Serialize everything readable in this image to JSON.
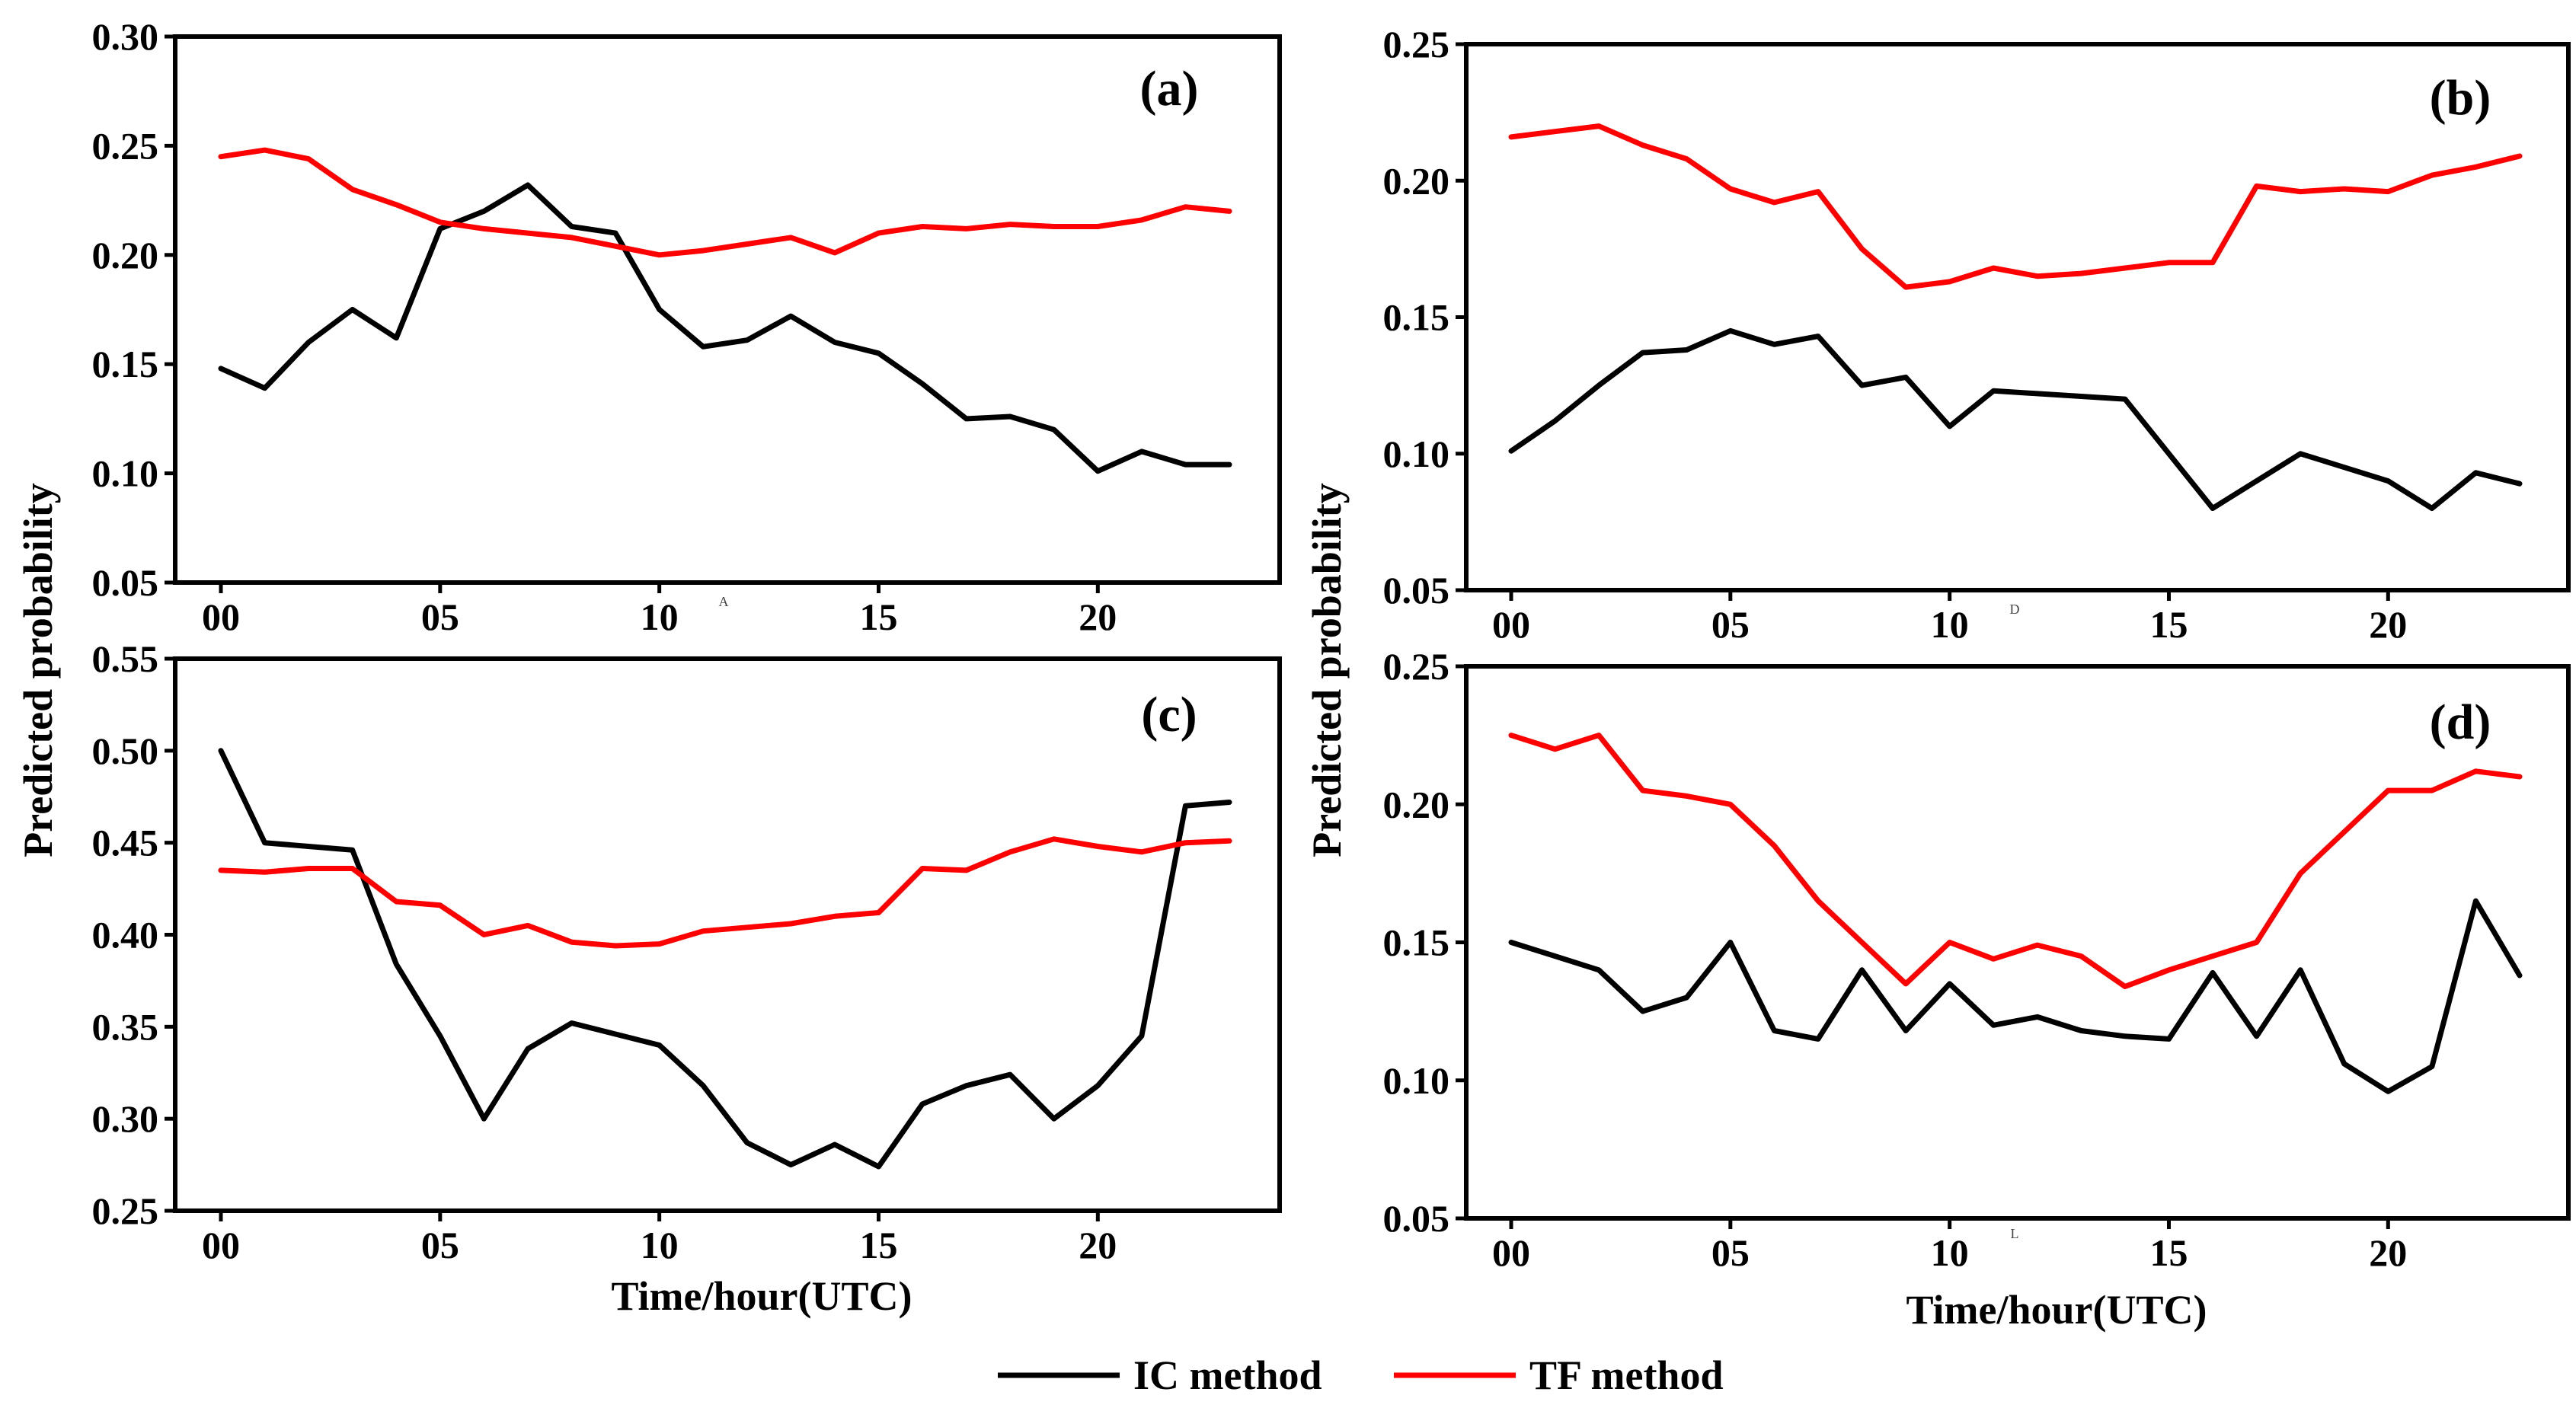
{
  "colors": {
    "ic": "#000000",
    "tf": "#ff0000"
  },
  "legend": [
    {
      "name": "IC method",
      "color": "#000000"
    },
    {
      "name": "TF method",
      "color": "#ff0000"
    }
  ],
  "chart_data": [
    {
      "type": "line",
      "panel": "(a)",
      "ylabel": "Predicted probability",
      "xlabel": "",
      "ylim": [
        0.05,
        0.3
      ],
      "yticks": [
        "0.05",
        "0.10",
        "0.15",
        "0.20",
        "0.25",
        "0.30"
      ],
      "xticks": [
        "00",
        "05",
        "10",
        "15",
        "20"
      ],
      "xtick_values": [
        0,
        5,
        10,
        15,
        20
      ],
      "stray_text": "A",
      "x": [
        0,
        1,
        2,
        3,
        4,
        5,
        6,
        7,
        8,
        9,
        10,
        11,
        12,
        13,
        14,
        15,
        16,
        17,
        18,
        19,
        20,
        21,
        22,
        23
      ],
      "series": [
        {
          "name": "IC method",
          "values": [
            0.148,
            0.139,
            0.16,
            0.175,
            0.162,
            0.212,
            0.22,
            0.232,
            0.213,
            0.21,
            0.175,
            0.158,
            0.161,
            0.172,
            0.16,
            0.155,
            0.141,
            0.125,
            0.126,
            0.12,
            0.101,
            0.11,
            0.104,
            0.104
          ]
        },
        {
          "name": "TF method",
          "values": [
            0.245,
            0.248,
            0.244,
            0.23,
            0.223,
            0.215,
            0.212,
            0.21,
            0.208,
            0.204,
            0.2,
            0.202,
            0.205,
            0.208,
            0.201,
            0.21,
            0.213,
            0.212,
            0.214,
            0.213,
            0.213,
            0.216,
            0.222,
            0.22
          ]
        }
      ]
    },
    {
      "type": "line",
      "panel": "(b)",
      "ylabel": "Predicted probability",
      "xlabel": "",
      "ylim": [
        0.05,
        0.25
      ],
      "yticks": [
        "0.05",
        "0.10",
        "0.15",
        "0.20",
        "0.25"
      ],
      "xticks": [
        "00",
        "05",
        "10",
        "15",
        "20"
      ],
      "xtick_values": [
        0,
        5,
        10,
        15,
        20
      ],
      "stray_text": "D",
      "x": [
        0,
        1,
        2,
        3,
        4,
        5,
        6,
        7,
        8,
        9,
        10,
        11,
        12,
        13,
        14,
        15,
        16,
        17,
        18,
        19,
        20,
        21,
        22,
        23
      ],
      "series": [
        {
          "name": "IC method",
          "values": [
            0.101,
            0.112,
            0.125,
            0.137,
            0.138,
            0.145,
            0.14,
            0.143,
            0.125,
            0.128,
            0.11,
            0.123,
            0.122,
            0.121,
            0.12,
            0.1,
            0.08,
            0.09,
            0.1,
            0.095,
            0.09,
            0.08,
            0.093,
            0.089
          ]
        },
        {
          "name": "TF method",
          "values": [
            0.216,
            0.218,
            0.22,
            0.213,
            0.208,
            0.197,
            0.192,
            0.196,
            0.175,
            0.161,
            0.163,
            0.168,
            0.165,
            0.166,
            0.168,
            0.17,
            0.17,
            0.198,
            0.196,
            0.197,
            0.196,
            0.202,
            0.205,
            0.209
          ]
        }
      ]
    },
    {
      "type": "line",
      "panel": "(c)",
      "ylabel": "Predicted probability",
      "xlabel": "Time/hour(UTC)",
      "ylim": [
        0.25,
        0.55
      ],
      "yticks": [
        "0.25",
        "0.30",
        "0.35",
        "0.40",
        "0.45",
        "0.50",
        "0.55"
      ],
      "xticks": [
        "00",
        "05",
        "10",
        "15",
        "20"
      ],
      "xtick_values": [
        0,
        5,
        10,
        15,
        20
      ],
      "stray_text": "",
      "x": [
        0,
        1,
        2,
        3,
        4,
        5,
        6,
        7,
        8,
        9,
        10,
        11,
        12,
        13,
        14,
        15,
        16,
        17,
        18,
        19,
        20,
        21,
        22,
        23
      ],
      "series": [
        {
          "name": "IC method",
          "values": [
            0.5,
            0.45,
            0.448,
            0.446,
            0.384,
            0.345,
            0.3,
            0.338,
            0.352,
            0.346,
            0.34,
            0.318,
            0.287,
            0.275,
            0.286,
            0.274,
            0.308,
            0.318,
            0.324,
            0.3,
            0.318,
            0.345,
            0.47,
            0.472
          ]
        },
        {
          "name": "TF method",
          "values": [
            0.435,
            0.434,
            0.436,
            0.436,
            0.418,
            0.416,
            0.4,
            0.405,
            0.396,
            0.394,
            0.395,
            0.402,
            0.404,
            0.406,
            0.41,
            0.412,
            0.436,
            0.435,
            0.445,
            0.452,
            0.448,
            0.445,
            0.45,
            0.451
          ]
        }
      ]
    },
    {
      "type": "line",
      "panel": "(d)",
      "ylabel": "Predicted probability",
      "xlabel": "Time/hour(UTC)",
      "ylim": [
        0.05,
        0.25
      ],
      "yticks": [
        "0.05",
        "0.10",
        "0.15",
        "0.20",
        "0.25"
      ],
      "xticks": [
        "00",
        "05",
        "10",
        "15",
        "20"
      ],
      "xtick_values": [
        0,
        5,
        10,
        15,
        20
      ],
      "stray_text": "L",
      "x": [
        0,
        1,
        2,
        3,
        4,
        5,
        6,
        7,
        8,
        9,
        10,
        11,
        12,
        13,
        14,
        15,
        16,
        17,
        18,
        19,
        20,
        21,
        22,
        23
      ],
      "series": [
        {
          "name": "IC method",
          "values": [
            0.15,
            0.145,
            0.14,
            0.125,
            0.13,
            0.15,
            0.118,
            0.115,
            0.14,
            0.118,
            0.135,
            0.12,
            0.123,
            0.118,
            0.116,
            0.115,
            0.139,
            0.116,
            0.14,
            0.106,
            0.096,
            0.105,
            0.165,
            0.138
          ]
        },
        {
          "name": "TF method",
          "values": [
            0.225,
            0.22,
            0.225,
            0.205,
            0.203,
            0.2,
            0.185,
            0.165,
            0.15,
            0.135,
            0.15,
            0.144,
            0.149,
            0.145,
            0.134,
            0.14,
            0.145,
            0.15,
            0.175,
            0.19,
            0.205,
            0.205,
            0.212,
            0.21
          ]
        }
      ]
    }
  ]
}
